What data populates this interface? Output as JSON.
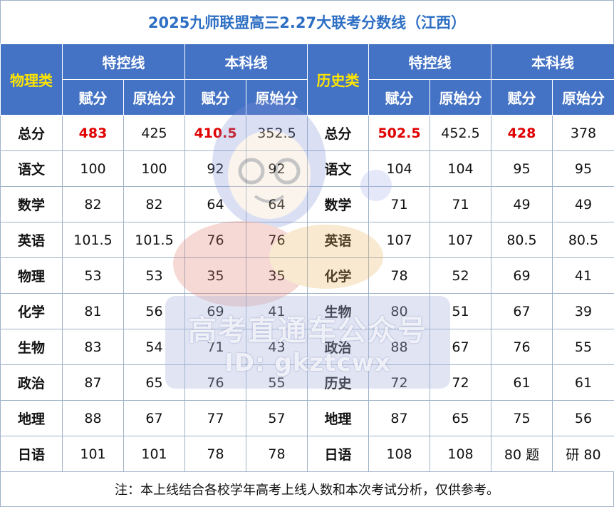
{
  "title": "2025九师联盟高三2.27大联考分数线（江西）",
  "header": {
    "physics_category": "物理类",
    "history_category": "历史类",
    "special_line": "特控线",
    "undergrad_line": "本科线",
    "assigned_score": "赋分",
    "raw_score": "原始分"
  },
  "rows": [
    {
      "p_subject": "总分",
      "p_sa": "483",
      "p_sr": "425",
      "p_ua": "410.5",
      "p_ur": "352.5",
      "h_subject": "总分",
      "h_sa": "502.5",
      "h_sr": "452.5",
      "h_ua": "428",
      "h_ur": "378"
    },
    {
      "p_subject": "语文",
      "p_sa": "100",
      "p_sr": "100",
      "p_ua": "92",
      "p_ur": "92",
      "h_subject": "语文",
      "h_sa": "104",
      "h_sr": "104",
      "h_ua": "95",
      "h_ur": "95"
    },
    {
      "p_subject": "数学",
      "p_sa": "82",
      "p_sr": "82",
      "p_ua": "64",
      "p_ur": "64",
      "h_subject": "数学",
      "h_sa": "71",
      "h_sr": "71",
      "h_ua": "49",
      "h_ur": "49"
    },
    {
      "p_subject": "英语",
      "p_sa": "101.5",
      "p_sr": "101.5",
      "p_ua": "76",
      "p_ur": "76",
      "h_subject": "英语",
      "h_sa": "107",
      "h_sr": "107",
      "h_ua": "80.5",
      "h_ur": "80.5"
    },
    {
      "p_subject": "物理",
      "p_sa": "53",
      "p_sr": "53",
      "p_ua": "35",
      "p_ur": "35",
      "h_subject": "化学",
      "h_sa": "78",
      "h_sr": "52",
      "h_ua": "69",
      "h_ur": "41"
    },
    {
      "p_subject": "化学",
      "p_sa": "81",
      "p_sr": "56",
      "p_ua": "69",
      "p_ur": "41",
      "h_subject": "生物",
      "h_sa": "80",
      "h_sr": "51",
      "h_ua": "67",
      "h_ur": "39"
    },
    {
      "p_subject": "生物",
      "p_sa": "83",
      "p_sr": "54",
      "p_ua": "71",
      "p_ur": "43",
      "h_subject": "政治",
      "h_sa": "88",
      "h_sr": "67",
      "h_ua": "76",
      "h_ur": "55"
    },
    {
      "p_subject": "政治",
      "p_sa": "87",
      "p_sr": "65",
      "p_ua": "76",
      "p_ur": "55",
      "h_subject": "历史",
      "h_sa": "72",
      "h_sr": "72",
      "h_ua": "61",
      "h_ur": "61"
    },
    {
      "p_subject": "地理",
      "p_sa": "88",
      "p_sr": "67",
      "p_ua": "77",
      "p_ur": "57",
      "h_subject": "地理",
      "h_sa": "87",
      "h_sr": "65",
      "h_ua": "75",
      "h_ur": "56"
    },
    {
      "p_subject": "日语",
      "p_sa": "101",
      "p_sr": "101",
      "p_ua": "78",
      "p_ur": "78",
      "h_subject": "日语",
      "h_sa": "108",
      "h_sr": "108",
      "h_ua": "80 题",
      "h_ur": "研 80"
    }
  ],
  "note": "注：本上线结合各校学年高考上线人数和本次考试分析，仅供参考。",
  "watermark": {
    "line1": "高考直通车公众号",
    "line2": "ID: gkztcwx"
  },
  "colors": {
    "title": "#2e6fc4",
    "header_bg": "#4472c4",
    "category_text": "#ffe600",
    "highlight": "#e00000",
    "border": "#9fb2c8"
  }
}
